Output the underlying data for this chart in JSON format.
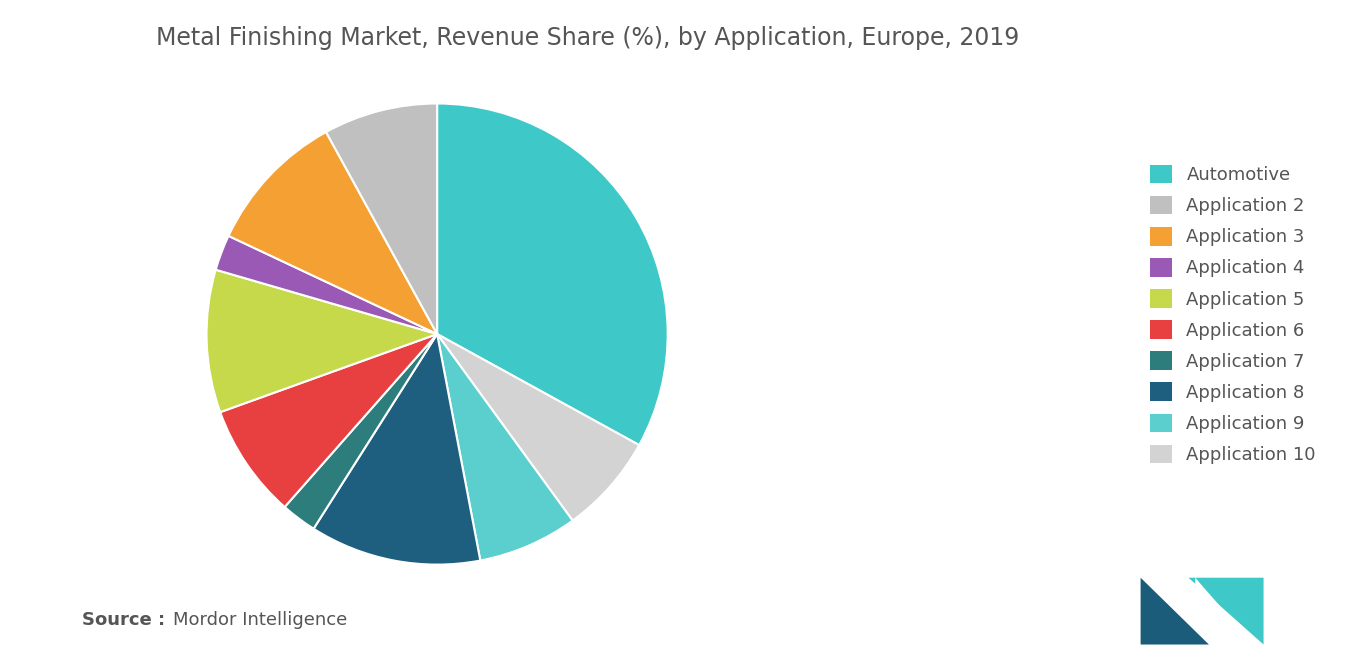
{
  "title": "Metal Finishing Market, Revenue Share (%), by Application, Europe, 2019",
  "source_bold": "Source : ",
  "source_normal": "Mordor Intelligence",
  "labels": [
    "Automotive",
    "Application 2",
    "Application 3",
    "Application 4",
    "Application 5",
    "Application 6",
    "Application 7",
    "Application 8",
    "Application 9",
    "Application 10"
  ],
  "sizes_ordered": [
    33,
    8,
    10,
    2.5,
    10,
    8,
    2.5,
    12,
    7,
    7
  ],
  "colors_ordered": [
    "#3EC8C8",
    "#C0C0C0",
    "#F5A033",
    "#9B59B6",
    "#C5D94A",
    "#E84040",
    "#2E7D7D",
    "#1E5F80",
    "#5BCECE",
    "#D3D3D3"
  ],
  "background_color": "#FFFFFF",
  "title_color": "#555555",
  "title_fontsize": 17,
  "legend_fontsize": 13,
  "source_fontsize": 13,
  "wedge_edge_color": "#FFFFFF",
  "wedge_linewidth": 1.5
}
